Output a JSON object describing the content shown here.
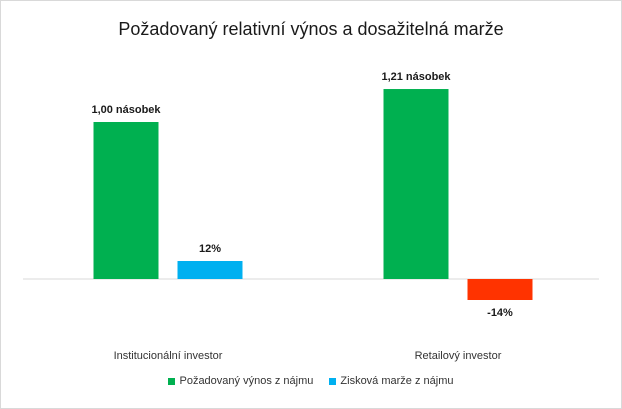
{
  "chart_data": {
    "type": "bar",
    "title": "Požadovaný relativní výnos a dosažitelná marže",
    "categories": [
      "Institucionální investor",
      "Retailový investor"
    ],
    "series": [
      {
        "name": "Požadovaný výnos z nájmu",
        "values": [
          1.0,
          1.21
        ],
        "labels": [
          "1,00 násobek",
          "1,21 násobek"
        ],
        "color": "#00b050"
      },
      {
        "name": "Zisková marže z nájmu",
        "values": [
          0.12,
          -0.14
        ],
        "labels": [
          "12%",
          "-14%"
        ],
        "color": "#00b0f0",
        "negative_color": "#ff3300"
      }
    ],
    "legend_position": "bottom",
    "grid": false
  }
}
